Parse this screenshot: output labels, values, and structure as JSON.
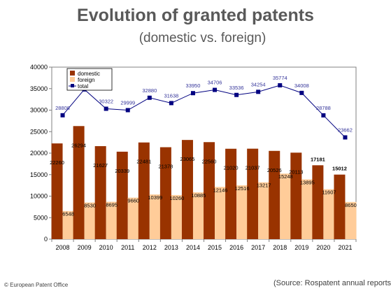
{
  "title": "Evolution of granted patents",
  "subtitle": "(domestic vs. foreign)",
  "copyright": "© European Patent Office",
  "source": "(Source: Rospatent annual reports)",
  "colors": {
    "domestic": "#993300",
    "foreign": "#ffcc99",
    "total": "#000080",
    "label_total": "#333399"
  },
  "chart_data": {
    "type": "bar",
    "categories": [
      "2008",
      "2009",
      "2010",
      "2011",
      "2012",
      "2013",
      "2014",
      "2015",
      "2016",
      "2017",
      "2018",
      "2019",
      "2020",
      "2021"
    ],
    "series": [
      {
        "name": "domestic",
        "type": "bar",
        "values": [
          22260,
          26294,
          21627,
          20339,
          22481,
          21378,
          23065,
          22560,
          21020,
          21037,
          20526,
          20113,
          17181,
          15012
        ]
      },
      {
        "name": "foreign",
        "type": "bar",
        "values": [
          6548,
          8530,
          8695,
          9660,
          10399,
          10260,
          10885,
          12146,
          12516,
          13217,
          15248,
          13895,
          11607,
          8650
        ]
      },
      {
        "name": "total",
        "type": "line",
        "values": [
          28808,
          34824,
          30322,
          29999,
          32880,
          31638,
          33950,
          34706,
          33536,
          34254,
          35774,
          34008,
          28788,
          23662
        ]
      }
    ],
    "ylim": [
      0,
      40000
    ],
    "yticks": [
      0,
      5000,
      10000,
      15000,
      20000,
      25000,
      30000,
      35000,
      40000
    ],
    "legend": "top-left",
    "grid": false
  }
}
